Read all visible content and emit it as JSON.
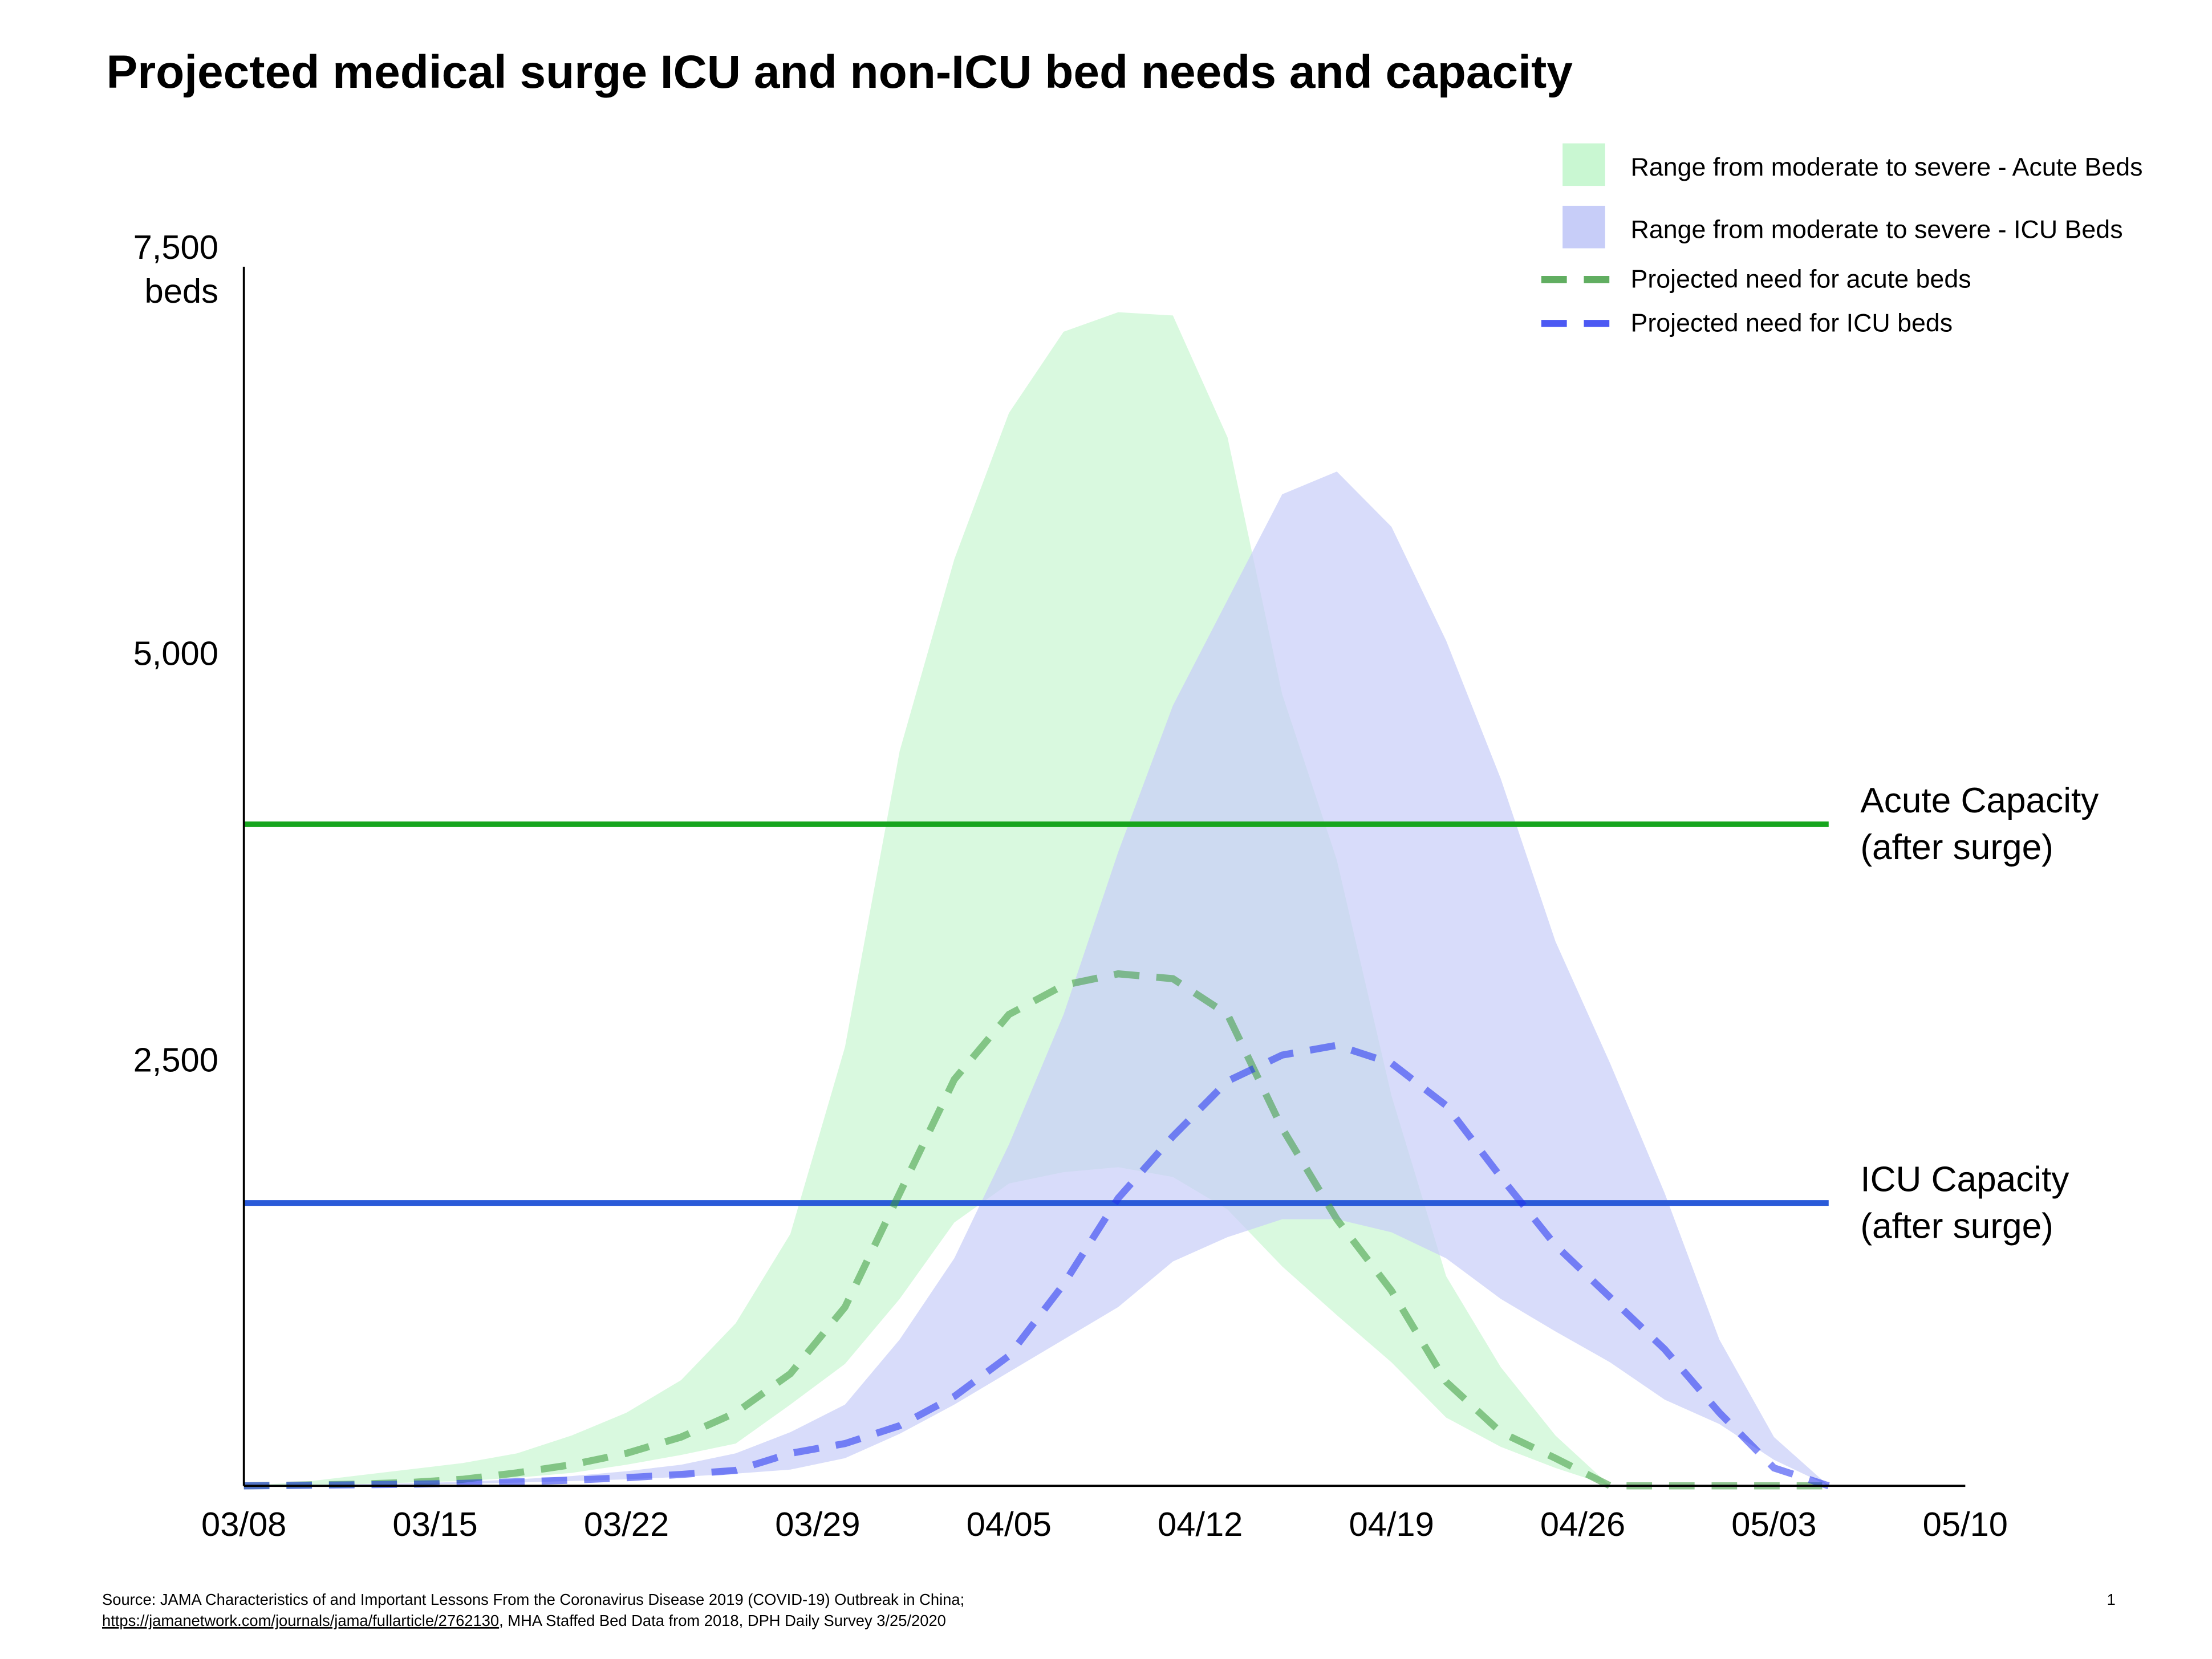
{
  "chart_data": {
    "type": "band-line",
    "title": "Projected medical surge ICU and non-ICU bed needs and capacity",
    "y_label": "beds",
    "x": [
      "03/08",
      "03/10",
      "03/12",
      "03/14",
      "03/16",
      "03/18",
      "03/20",
      "03/22",
      "03/24",
      "03/26",
      "03/28",
      "03/30",
      "04/01",
      "04/03",
      "04/05",
      "04/07",
      "04/09",
      "04/11",
      "04/13",
      "04/15",
      "04/17",
      "04/19",
      "04/21",
      "04/23",
      "04/25",
      "04/27",
      "04/29",
      "05/01",
      "05/03",
      "05/05"
    ],
    "xlim": [
      "03/08",
      "05/10"
    ],
    "xticks": [
      "03/08",
      "03/15",
      "03/22",
      "03/29",
      "04/05",
      "04/12",
      "04/19",
      "04/26",
      "05/03",
      "05/10"
    ],
    "ylim": [
      0,
      7500
    ],
    "yticks": [
      {
        "value": 2500,
        "label": "2,500"
      },
      {
        "value": 5000,
        "label": "5,000"
      },
      {
        "value": 7500,
        "label": "7,500"
      }
    ],
    "grid": false,
    "legend": "top-right",
    "bands": [
      {
        "name": "Range from moderate to severe - Acute Beds",
        "color": "#c9f7d2",
        "upper": [
          0,
          20,
          60,
          100,
          140,
          200,
          310,
          450,
          650,
          1000,
          1550,
          2700,
          4520,
          5700,
          6600,
          7100,
          7220,
          7200,
          6450,
          4870,
          3850,
          2400,
          1290,
          730,
          310,
          0,
          0,
          0,
          0,
          0
        ],
        "lower": [
          0,
          5,
          10,
          20,
          30,
          50,
          80,
          130,
          190,
          260,
          500,
          750,
          1150,
          1620,
          1860,
          1930,
          1960,
          1900,
          1700,
          1350,
          1050,
          760,
          420,
          240,
          110,
          0,
          0,
          0,
          0,
          0
        ]
      },
      {
        "name": "Range from moderate to severe - ICU Beds",
        "color": "#c7cdf8",
        "upper": [
          0,
          5,
          10,
          15,
          25,
          40,
          60,
          90,
          130,
          200,
          330,
          500,
          900,
          1400,
          2100,
          2900,
          3900,
          4800,
          5450,
          6100,
          6240,
          5900,
          5200,
          4350,
          3350,
          2600,
          1800,
          900,
          300,
          0
        ],
        "lower": [
          0,
          2,
          5,
          8,
          12,
          20,
          30,
          40,
          55,
          75,
          100,
          170,
          320,
          500,
          700,
          900,
          1100,
          1380,
          1530,
          1640,
          1640,
          1560,
          1400,
          1150,
          950,
          760,
          530,
          380,
          160,
          0
        ]
      }
    ],
    "series": [
      {
        "name": "Projected need for acute beds",
        "color": "#3a9a3a",
        "values": [
          0,
          5,
          10,
          20,
          40,
          80,
          130,
          200,
          300,
          450,
          690,
          1100,
          1800,
          2500,
          2900,
          3080,
          3150,
          3120,
          2900,
          2200,
          1640,
          1200,
          640,
          330,
          170,
          0,
          0,
          0,
          0,
          0
        ]
      },
      {
        "name": "Projected need for ICU beds",
        "color": "#1f2ff0",
        "values": [
          0,
          3,
          6,
          10,
          15,
          25,
          35,
          50,
          70,
          95,
          200,
          260,
          370,
          550,
          800,
          1240,
          1770,
          2150,
          2490,
          2650,
          2710,
          2600,
          2340,
          1900,
          1480,
          1160,
          840,
          450,
          110,
          0
        ]
      }
    ],
    "reference_lines": [
      {
        "value": 4070,
        "color": "#17a51e",
        "label": "Acute Capacity",
        "label_color": "#000000",
        "sublabel": "(after surge)"
      },
      {
        "value": 1740,
        "color": "#2a5ad8",
        "label": "ICU Capacity",
        "label_color": "#1a1ae6",
        "sublabel": "(after surge)"
      }
    ],
    "reference_end": "05/05"
  },
  "footer": {
    "source": "Source: JAMA Characteristics of and Important Lessons From the Coronavirus Disease 2019 (COVID-19) Outbreak in China;",
    "link": "https://jamanetwork.com/journals/jama/fullarticle/2762130",
    "source_rest": ", MHA Staffed Bed Data from 2018, DPH Daily Survey 3/25/2020",
    "page_number": "1"
  }
}
